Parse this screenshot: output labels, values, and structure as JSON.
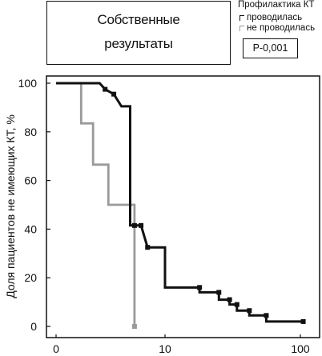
{
  "title": {
    "line1": "Собственные",
    "line2": "результаты"
  },
  "legend": {
    "title": "Профилактика КТ",
    "items": [
      {
        "label": "проводилась",
        "color": "#111111"
      },
      {
        "label": "не проводилась",
        "color": "#9a9a9a"
      }
    ]
  },
  "p_value": "Р-0,001",
  "chart_data": {
    "type": "line",
    "title": "",
    "xlabel": "",
    "ylabel": "Доля пациентов не имеющих КТ, %",
    "x_ticks": [
      "0",
      "10",
      "100"
    ],
    "y_ticks": [
      "0",
      "20",
      "40",
      "60",
      "80",
      "100"
    ],
    "ylim": [
      0,
      100
    ],
    "grid": false,
    "legend_position": "top-right",
    "series": [
      {
        "name": "проводилась",
        "color": "#111111",
        "points": [
          [
            0,
            100
          ],
          [
            4,
            100
          ],
          [
            4.5,
            97.5
          ],
          [
            5.3,
            95.5
          ],
          [
            6,
            90.5
          ],
          [
            6.8,
            90.5
          ],
          [
            6.8,
            41.5
          ],
          [
            7.8,
            41.5
          ],
          [
            8.4,
            32.5
          ],
          [
            10,
            32.5
          ],
          [
            10,
            16
          ],
          [
            18,
            16
          ],
          [
            18,
            14
          ],
          [
            25,
            14
          ],
          [
            25,
            11
          ],
          [
            30,
            11
          ],
          [
            30,
            9
          ],
          [
            34,
            9
          ],
          [
            34,
            6.5
          ],
          [
            42,
            6.5
          ],
          [
            42,
            4.5
          ],
          [
            56,
            4.5
          ],
          [
            56,
            2
          ],
          [
            105,
            2
          ]
        ],
        "censor_marks": [
          [
            4.5,
            97.5
          ],
          [
            5.3,
            95.5
          ],
          [
            7.2,
            41.5
          ],
          [
            7.8,
            41.5
          ],
          [
            8.4,
            32.5
          ],
          [
            18,
            16
          ],
          [
            25,
            14
          ],
          [
            30,
            11
          ],
          [
            34,
            9
          ],
          [
            42,
            6.5
          ],
          [
            56,
            4.5
          ],
          [
            105,
            2
          ]
        ]
      },
      {
        "name": "не проводилась",
        "color": "#9a9a9a",
        "points": [
          [
            0,
            100
          ],
          [
            2.3,
            100
          ],
          [
            2.3,
            83.5
          ],
          [
            3.4,
            83.5
          ],
          [
            3.4,
            66.5
          ],
          [
            4.8,
            66.5
          ],
          [
            4.8,
            50
          ],
          [
            7.2,
            50
          ],
          [
            7.2,
            0
          ]
        ],
        "censor_marks": [
          [
            7.2,
            0
          ]
        ]
      }
    ]
  }
}
